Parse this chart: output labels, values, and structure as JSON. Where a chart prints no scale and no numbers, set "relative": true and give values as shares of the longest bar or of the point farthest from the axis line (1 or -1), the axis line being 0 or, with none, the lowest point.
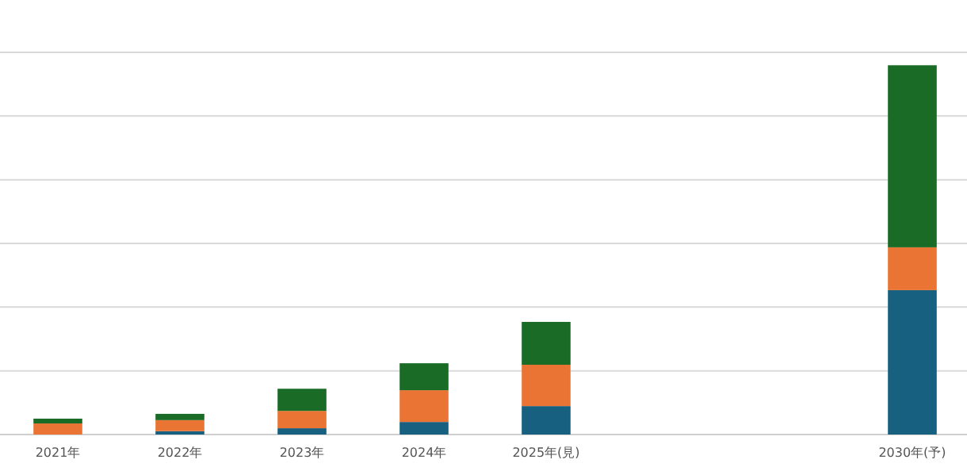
{
  "chart_data": {
    "type": "bar",
    "stacked": true,
    "relative": true,
    "grid": "y",
    "categories": [
      "2021年",
      "2022年",
      "2023年",
      "2024年",
      "2025年(見)",
      null,
      null,
      "2030年(予)"
    ],
    "series": [
      {
        "color": "#17607f",
        "values": [
          0,
          0.009,
          0.017,
          0.034,
          0.077,
          null,
          null,
          0.391
        ]
      },
      {
        "color": "#e97434",
        "values": [
          0.03,
          0.03,
          0.047,
          0.086,
          0.112,
          null,
          null,
          0.116
        ]
      },
      {
        "color": "#1a6b25",
        "values": [
          0.013,
          0.017,
          0.06,
          0.073,
          0.116,
          null,
          null,
          0.493
        ]
      }
    ]
  }
}
